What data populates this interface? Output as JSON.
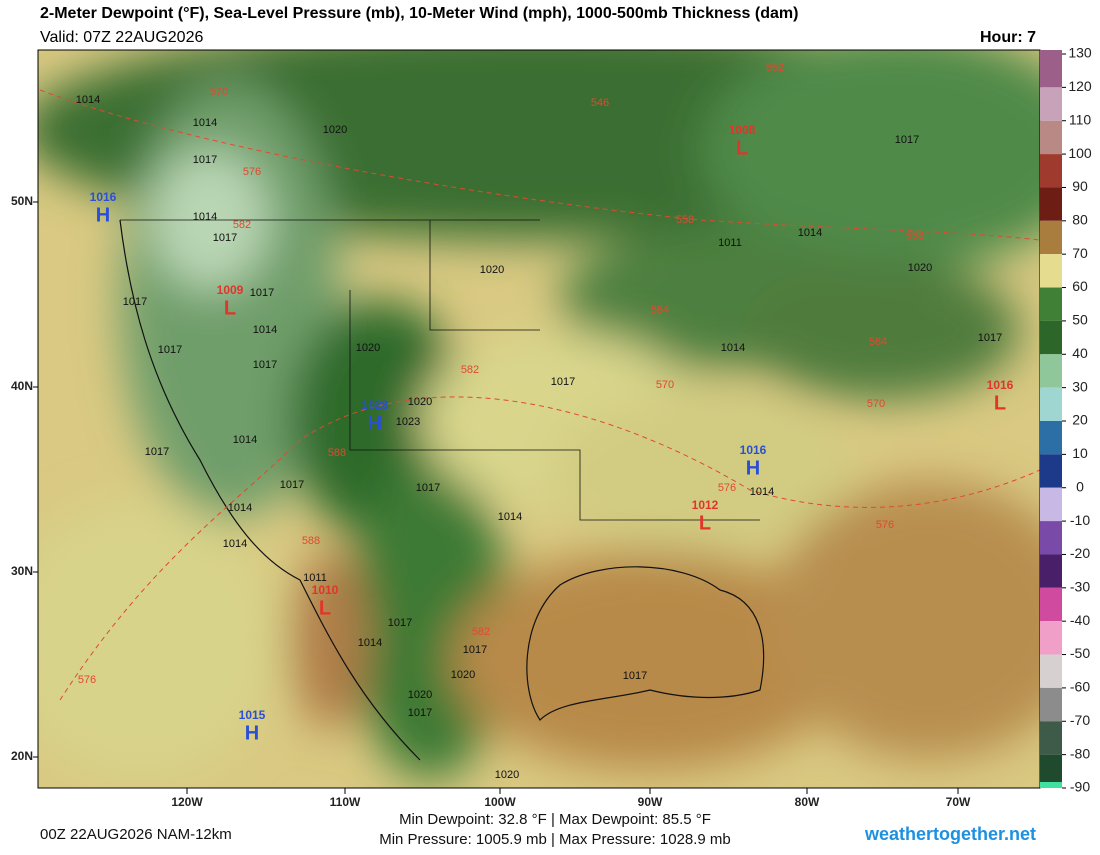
{
  "header": {
    "title": "2-Meter Dewpoint (°F), Sea-Level Pressure (mb), 10-Meter Wind (mph), 1000-500mb Thickness (dam)",
    "valid": "Valid: 07Z 22AUG2026",
    "hour": "Hour: 7"
  },
  "map": {
    "lat_labels": [
      "50N",
      "40N",
      "30N",
      "20N"
    ],
    "lon_labels": [
      "120W",
      "110W",
      "100W",
      "90W",
      "80W",
      "70W"
    ],
    "pressure_centers": [
      {
        "type": "H",
        "value": 1016
      },
      {
        "type": "L",
        "value": 1009
      },
      {
        "type": "H",
        "value": 1028
      },
      {
        "type": "L",
        "value": 1008
      },
      {
        "type": "L",
        "value": 1016
      },
      {
        "type": "H",
        "value": 1016
      },
      {
        "type": "L",
        "value": 1012
      },
      {
        "type": "L",
        "value": 1010
      },
      {
        "type": "H",
        "value": 1015
      }
    ],
    "isobar_labels": [
      1014,
      1014,
      1020,
      1017,
      1014,
      1017,
      1017,
      1014,
      1017,
      1017,
      1017,
      1020,
      1020,
      1023,
      1014,
      1017,
      1017,
      1014,
      1014,
      1011,
      1017,
      1014,
      1017,
      1020,
      1011,
      1014,
      1017,
      1020,
      1017,
      1014,
      1014,
      1014,
      1017,
      1017,
      1020,
      1020,
      1017,
      1017,
      1020
    ],
    "thickness_labels": [
      570,
      576,
      582,
      546,
      552,
      558,
      558,
      564,
      564,
      570,
      570,
      576,
      576,
      582,
      588,
      588,
      582,
      576
    ]
  },
  "colorbar": {
    "ticks": [
      130,
      120,
      110,
      100,
      90,
      80,
      70,
      60,
      50,
      40,
      30,
      20,
      10,
      0,
      -10,
      -20,
      -30,
      -40,
      -50,
      -60,
      -70,
      -80,
      -90
    ],
    "colors": [
      "#9c5f8a",
      "#c7a2b9",
      "#b98a85",
      "#9e3a2e",
      "#6e1d14",
      "#a97d3e",
      "#e6dc8f",
      "#3f7f36",
      "#2d6629",
      "#8fc79a",
      "#9fd6d2",
      "#2b6fa6",
      "#1d3a8a",
      "#c8b8e6",
      "#7a4aa8",
      "#4a1f6a",
      "#d04aa0",
      "#f0a0c8",
      "#d6d0d0",
      "#8c8c8c",
      "#3e5a48",
      "#1f4a2e",
      "#40e0a0"
    ]
  },
  "footer": {
    "run": "00Z 22AUG2026 NAM-12km",
    "dewpoint": "Min Dewpoint: 32.8 °F | Max Dewpoint: 85.5 °F",
    "pressure": "Min Pressure: 1005.9 mb | Max Pressure: 1028.9 mb",
    "site": "weathertogether.net"
  }
}
